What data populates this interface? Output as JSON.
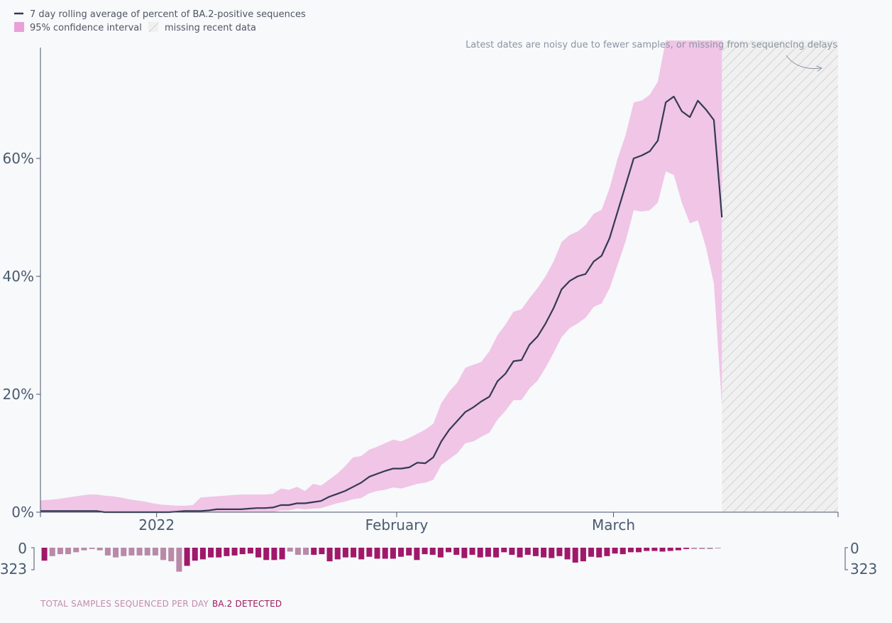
{
  "colors": {
    "line": "#343a52",
    "ci": "#f0c5e6",
    "total_bar": "#b98aa7",
    "detected_bar": "#a0186a",
    "axis": "#4a5568",
    "hatch": "#c8c8c8"
  },
  "legend": {
    "line_label": "7 day rolling average of percent of BA.2-positive sequences",
    "ci_label": "95% confidence interval",
    "missing_label": "missing recent data"
  },
  "annotation": "Latest dates are noisy due to fewer samples, or missing from sequencing delays",
  "bottom_labels": {
    "total": "TOTAL SAMPLES SEQUENCED PER DAY",
    "detected": "BA.2 DETECTED"
  },
  "chart_data": {
    "type": "line",
    "x_range": [
      "2021-12-17",
      "2022-03-30"
    ],
    "x_ticks": [
      {
        "date": "2022-01-01",
        "label": "2022"
      },
      {
        "date": "2022-02-01",
        "label": "February"
      },
      {
        "date": "2022-03-01",
        "label": "March"
      }
    ],
    "ylim": [
      0,
      80
    ],
    "y_ticks": [
      {
        "value": 0,
        "label": "0%"
      },
      {
        "value": 20,
        "label": "20%"
      },
      {
        "value": 40,
        "label": "40%"
      },
      {
        "value": 60,
        "label": "60%"
      }
    ],
    "missing_from": "2022-03-15",
    "missing_to": "2022-03-30",
    "series": [
      {
        "values": [
          0.2,
          0.2,
          0.2,
          0.2,
          0.2,
          0.2,
          0.2,
          0.2,
          0.0,
          0.0,
          0.0,
          0.0,
          0.0,
          0.0,
          0.0,
          0.0,
          0.0,
          0.1,
          0.2,
          0.2,
          0.2,
          0.3,
          0.5,
          0.5,
          0.5,
          0.5,
          0.6,
          0.7,
          0.7,
          0.8,
          1.2,
          1.2,
          1.5,
          1.5,
          1.7,
          1.9,
          2.6,
          3.1,
          3.6,
          4.3,
          5.0,
          6.0,
          6.5,
          7.0,
          7.4,
          7.4,
          7.6,
          8.4,
          8.3,
          9.3,
          12.0,
          14.0,
          15.5,
          17.0,
          17.8,
          18.8,
          19.6,
          22.2,
          23.5,
          25.6,
          25.8,
          28.4,
          29.8,
          32.0,
          34.6,
          37.8,
          39.2,
          40.0,
          40.4,
          42.5,
          43.5,
          46.5,
          51.0,
          55.5,
          60.0,
          60.5,
          61.2,
          63.0,
          69.5,
          70.5,
          68.0,
          67.0,
          69.8,
          68.3,
          66.5,
          50.0
        ],
        "ci_upper": [
          2.0,
          2.1,
          2.2,
          2.4,
          2.6,
          2.8,
          3.0,
          3.0,
          2.8,
          2.7,
          2.5,
          2.2,
          2.0,
          1.8,
          1.5,
          1.3,
          1.2,
          1.1,
          1.1,
          1.2,
          2.5,
          2.6,
          2.7,
          2.8,
          2.9,
          3.0,
          3.0,
          3.0,
          3.0,
          3.1,
          4.0,
          3.8,
          4.3,
          3.6,
          4.8,
          4.5,
          5.5,
          6.5,
          7.8,
          9.3,
          9.5,
          10.6,
          11.1,
          11.7,
          12.3,
          12.0,
          12.6,
          13.3,
          14.0,
          15.0,
          18.5,
          20.5,
          22.0,
          24.5,
          25.0,
          25.5,
          27.3,
          30.0,
          31.8,
          34.0,
          34.4,
          36.3,
          38.0,
          40.0,
          42.5,
          45.8,
          47.0,
          47.6,
          48.7,
          50.6,
          51.3,
          55.0,
          60.0,
          64.0,
          69.5,
          69.8,
          70.8,
          73.0,
          80.0,
          80.0,
          80.0,
          80.0,
          80.0,
          80.0,
          80.0,
          80.0
        ],
        "ci_lower": [
          0.0,
          0.0,
          0.0,
          0.0,
          0.0,
          0.0,
          0.0,
          0.0,
          0.0,
          0.0,
          0.0,
          0.0,
          0.0,
          0.0,
          0.0,
          0.0,
          0.0,
          0.0,
          0.0,
          0.0,
          0.0,
          0.0,
          0.0,
          0.0,
          0.0,
          0.0,
          0.0,
          0.0,
          0.0,
          0.0,
          0.3,
          0.3,
          0.6,
          0.5,
          0.6,
          0.7,
          1.1,
          1.5,
          1.8,
          2.2,
          2.4,
          3.2,
          3.6,
          3.8,
          4.2,
          4.0,
          4.4,
          4.8,
          5.0,
          5.5,
          8.0,
          9.0,
          10.0,
          11.7,
          12.0,
          12.8,
          13.5,
          15.7,
          17.2,
          19.0,
          19.0,
          21.0,
          22.3,
          24.5,
          27.0,
          29.7,
          31.2,
          32.0,
          33.0,
          34.8,
          35.4,
          38.0,
          42.0,
          46.0,
          51.2,
          51.0,
          51.2,
          52.5,
          57.8,
          57.2,
          52.5,
          49.0,
          49.5,
          45.0,
          38.8,
          18.0
        ]
      }
    ],
    "daily_total": [
      34,
      13,
      10,
      10,
      7,
      4,
      2,
      4,
      12,
      15,
      13,
      12,
      12,
      12,
      12,
      19,
      21,
      37,
      27,
      23,
      18,
      15,
      14,
      13,
      12,
      10,
      9,
      18,
      24,
      19,
      19,
      6,
      11,
      11,
      12,
      11,
      24,
      18,
      18,
      18,
      18,
      14,
      18,
      18,
      18,
      16,
      14,
      19,
      11,
      11,
      15,
      7,
      11,
      16,
      11,
      15,
      14,
      15,
      7,
      11,
      15,
      11,
      13,
      15,
      16,
      13,
      18,
      23,
      21,
      14,
      15,
      13,
      9,
      10,
      7,
      7,
      5,
      5,
      6,
      5,
      4,
      2,
      2,
      2,
      2,
      1
    ],
    "daily_detected": [
      20,
      0,
      0,
      0,
      0,
      0,
      0,
      0,
      0,
      0,
      0,
      0,
      0,
      0,
      0,
      0,
      0,
      0,
      28,
      20,
      18,
      15,
      15,
      13,
      12,
      10,
      9,
      15,
      19,
      19,
      18,
      0,
      0,
      0,
      11,
      10,
      21,
      18,
      15,
      15,
      18,
      14,
      17,
      17,
      17,
      14,
      12,
      19,
      10,
      11,
      15,
      7,
      11,
      16,
      11,
      15,
      14,
      15,
      7,
      11,
      15,
      11,
      13,
      15,
      16,
      13,
      18,
      23,
      21,
      14,
      15,
      13,
      9,
      10,
      7,
      7,
      5,
      5,
      6,
      5,
      4,
      2,
      0,
      0,
      0,
      0
    ],
    "bar_scale_max": 323,
    "bar_axis_labels": {
      "top": "0",
      "bottom": "323"
    }
  }
}
